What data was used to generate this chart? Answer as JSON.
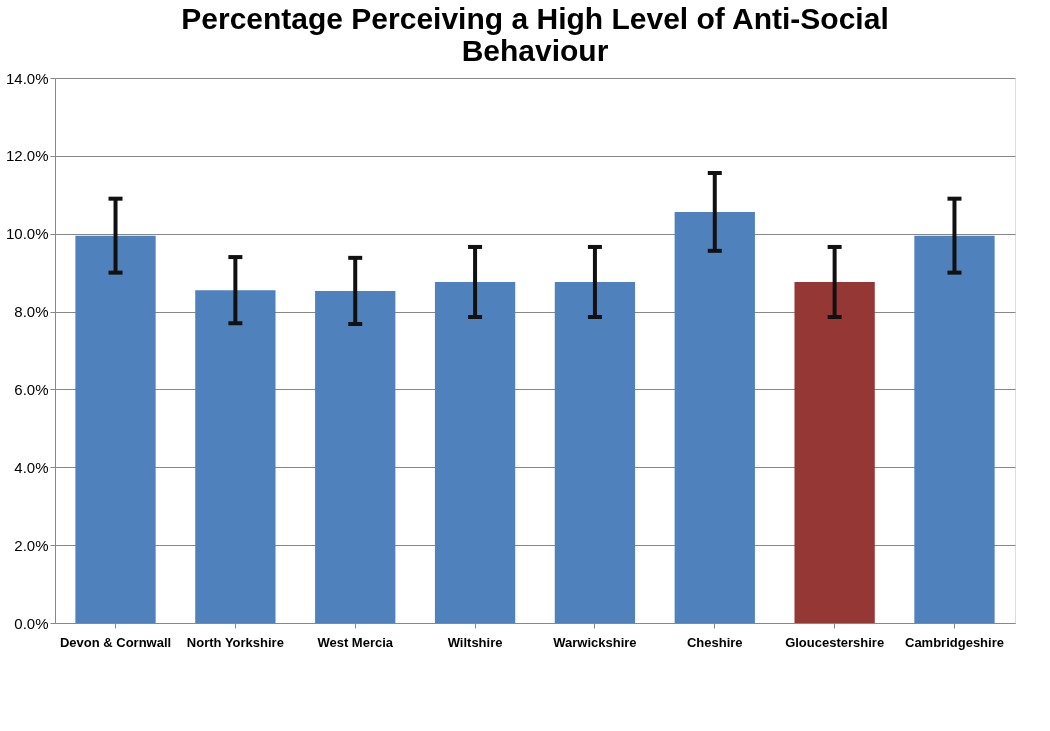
{
  "chart_data": {
    "type": "bar",
    "title": "Percentage Perceiving a High Level of Anti-Social Behaviour",
    "categories": [
      "Devon & Cornwall",
      "North Yorkshire",
      "West Mercia",
      "Wiltshire",
      "Warwickshire",
      "Cheshire",
      "Gloucestershire",
      "Cambridgeshire"
    ],
    "values": [
      9.95,
      8.55,
      8.53,
      8.76,
      8.76,
      10.56,
      8.76,
      9.95
    ],
    "errors": [
      0.95,
      0.85,
      0.85,
      0.9,
      0.9,
      1.0,
      0.9,
      0.95
    ],
    "colors": [
      "#4f81bd",
      "#4f81bd",
      "#4f81bd",
      "#4f81bd",
      "#4f81bd",
      "#4f81bd",
      "#953735",
      "#4f81bd"
    ],
    "ylim": [
      0,
      14
    ],
    "yticks": [
      {
        "value": 0,
        "label": "0.0%"
      },
      {
        "value": 2,
        "label": "2.0%"
      },
      {
        "value": 4,
        "label": "4.0%"
      },
      {
        "value": 6,
        "label": "6.0%"
      },
      {
        "value": 8,
        "label": "8.0%"
      },
      {
        "value": 10,
        "label": "10.0%"
      },
      {
        "value": 12,
        "label": "12.0%"
      },
      {
        "value": 14,
        "label": "14.0%"
      }
    ],
    "grid": "y"
  }
}
